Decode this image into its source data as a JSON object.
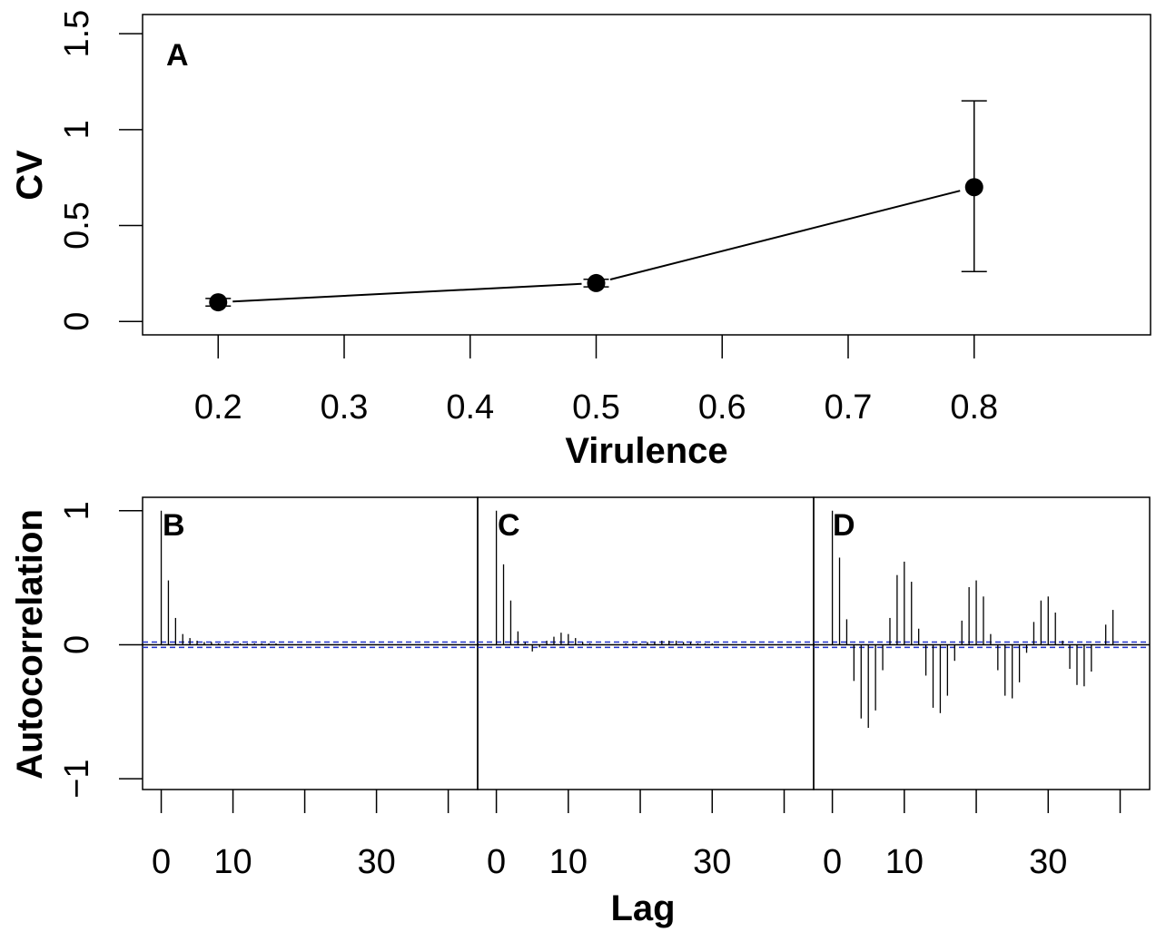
{
  "chart_data": [
    {
      "panel": "A",
      "type": "line",
      "xlabel": "Virulence",
      "ylabel": "CV",
      "xlim": [
        0.14,
        0.94
      ],
      "ylim": [
        -0.07,
        1.6
      ],
      "xticks": [
        "0.2",
        "0.3",
        "0.4",
        "0.5",
        "0.6",
        "0.7",
        "0.8"
      ],
      "yticks": [
        "0",
        "0.5",
        "1",
        "1.5"
      ],
      "series": [
        {
          "x": [
            0.2,
            0.5,
            0.8
          ],
          "y": [
            0.1,
            0.2,
            0.7
          ],
          "error_low": [
            0.08,
            0.18,
            0.26
          ],
          "error_high": [
            0.12,
            0.22,
            1.15
          ]
        }
      ],
      "grid": false
    },
    {
      "panel": "B",
      "type": "bar",
      "xlabel": "Lag",
      "ylabel": "Autocorrelation",
      "xticks": [
        "0",
        "10",
        "30"
      ],
      "yticks": [
        "−1",
        "0",
        "1"
      ],
      "ylim": [
        -1.08,
        1.1
      ],
      "confidence_band": 0.02,
      "lags": [
        0,
        1,
        2,
        3,
        4,
        5,
        6,
        7,
        8,
        9,
        10,
        11,
        12,
        13,
        14,
        15,
        16,
        17,
        18,
        19,
        20,
        21,
        22,
        23,
        24,
        25,
        26,
        27,
        28,
        29,
        30,
        31,
        32,
        33,
        34,
        35,
        36,
        37,
        38,
        39,
        40,
        41,
        42,
        43
      ],
      "values": [
        1.0,
        0.48,
        0.2,
        0.08,
        0.05,
        0.03,
        0.02,
        0.02,
        0.01,
        0.01,
        0.01,
        0.01,
        0.01,
        0.01,
        0.01,
        0.01,
        0.01,
        0.0,
        0.0,
        0.0,
        0.0,
        0.0,
        0.0,
        0.0,
        0.0,
        0.0,
        0.0,
        0.0,
        0.0,
        0.0,
        0.0,
        0.0,
        0.0,
        0.0,
        0.0,
        0.0,
        0.0,
        0.0,
        0.0,
        0.0,
        0.0,
        0.0,
        0.0,
        0.0
      ]
    },
    {
      "panel": "C",
      "type": "bar",
      "xlabel": "Lag",
      "ylabel": "Autocorrelation",
      "xticks": [
        "0",
        "10",
        "30"
      ],
      "ylim": [
        -1.08,
        1.1
      ],
      "confidence_band": 0.02,
      "lags": [
        0,
        1,
        2,
        3,
        4,
        5,
        6,
        7,
        8,
        9,
        10,
        11,
        12,
        13,
        14,
        15,
        16,
        17,
        18,
        19,
        20,
        21,
        22,
        23,
        24,
        25,
        26,
        27,
        28,
        29,
        30,
        31,
        32,
        33,
        34,
        35,
        36,
        37,
        38,
        39,
        40,
        41,
        42,
        43
      ],
      "values": [
        1.0,
        0.6,
        0.33,
        0.1,
        0.02,
        -0.05,
        -0.02,
        0.03,
        0.06,
        0.09,
        0.08,
        0.05,
        0.02,
        0.01,
        0.0,
        0.0,
        0.0,
        0.0,
        0.01,
        0.01,
        0.01,
        0.02,
        0.02,
        0.03,
        0.03,
        0.03,
        0.02,
        0.02,
        0.01,
        0.01,
        0.01,
        0.0,
        0.0,
        0.0,
        0.0,
        0.0,
        0.0,
        0.0,
        0.0,
        0.0,
        0.0,
        0.0,
        0.0,
        0.0
      ]
    },
    {
      "panel": "D",
      "type": "bar",
      "xlabel": "Lag",
      "ylabel": "Autocorrelation",
      "xticks": [
        "0",
        "10",
        "30"
      ],
      "ylim": [
        -1.08,
        1.1
      ],
      "confidence_band": 0.02,
      "lags": [
        0,
        1,
        2,
        3,
        4,
        5,
        6,
        7,
        8,
        9,
        10,
        11,
        12,
        13,
        14,
        15,
        16,
        17,
        18,
        19,
        20,
        21,
        22,
        23,
        24,
        25,
        26,
        27,
        28,
        29,
        30,
        31,
        32,
        33,
        34,
        35,
        36,
        37,
        38,
        39
      ],
      "values": [
        1.0,
        0.65,
        0.19,
        -0.27,
        -0.55,
        -0.62,
        -0.49,
        -0.19,
        0.2,
        0.52,
        0.62,
        0.47,
        0.12,
        -0.23,
        -0.47,
        -0.51,
        -0.38,
        -0.12,
        0.18,
        0.43,
        0.48,
        0.36,
        0.08,
        -0.19,
        -0.38,
        -0.4,
        -0.28,
        -0.06,
        0.17,
        0.33,
        0.36,
        0.24,
        0.03,
        -0.18,
        -0.3,
        -0.31,
        -0.2,
        0.0,
        0.15,
        0.26
      ]
    }
  ]
}
